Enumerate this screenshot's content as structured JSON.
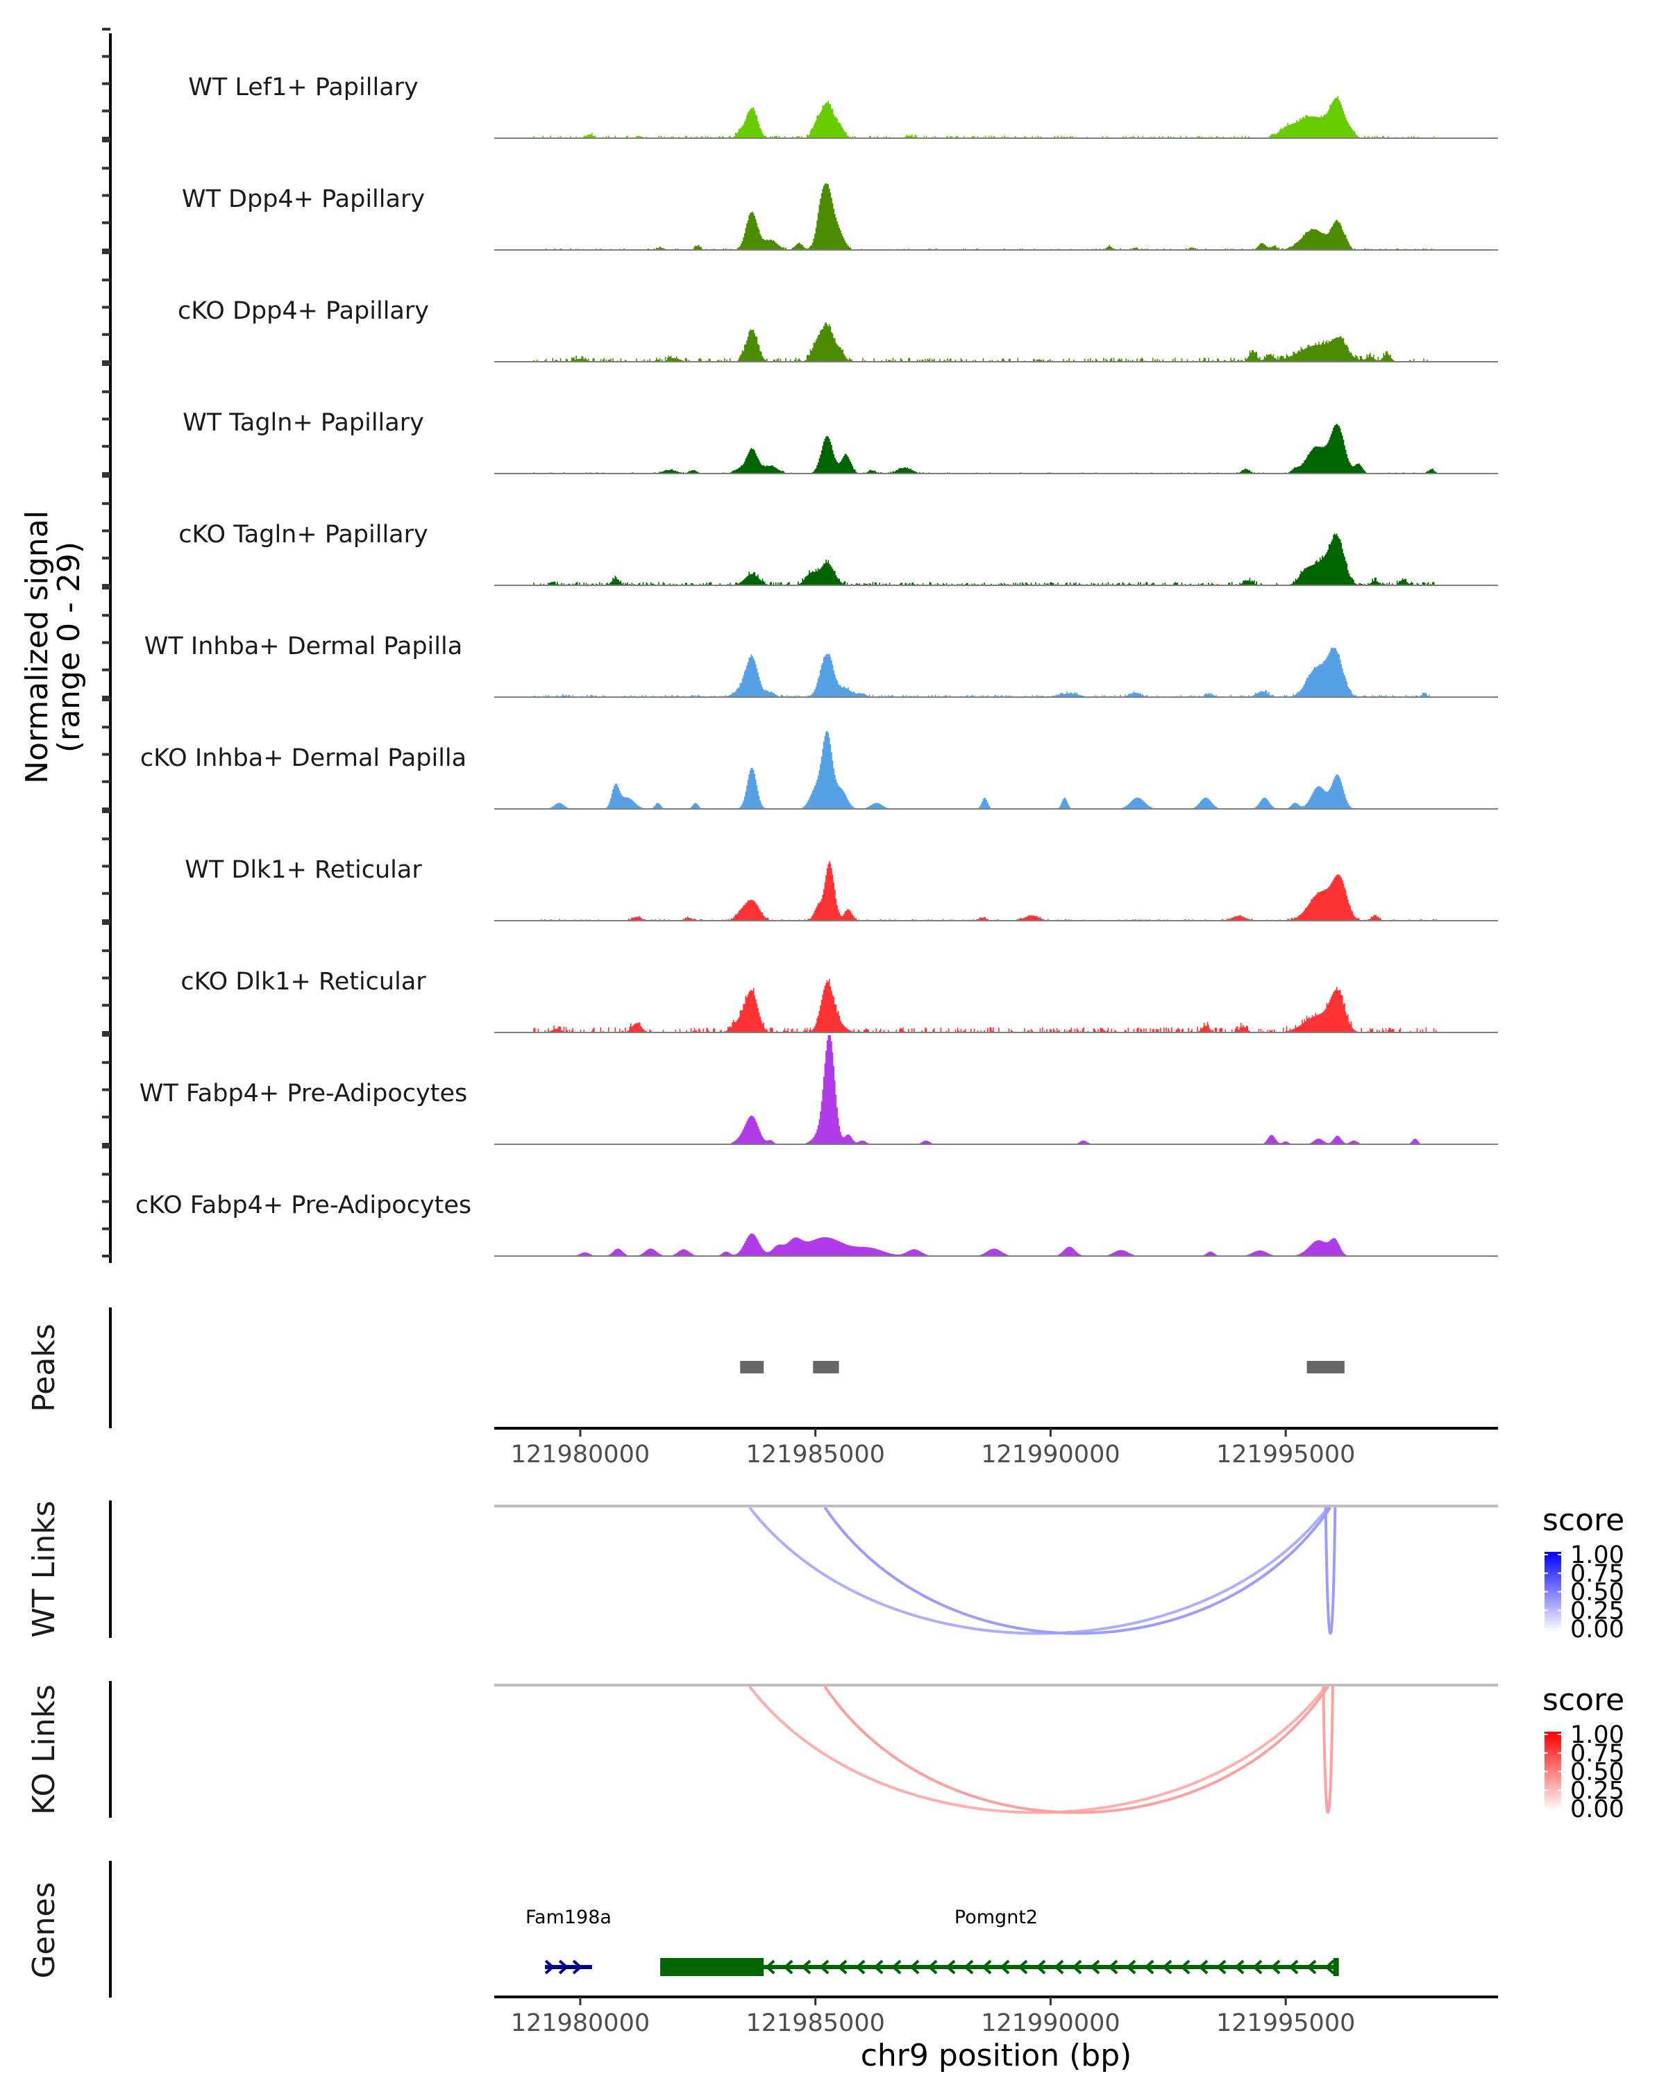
{
  "chart_data": {
    "type": "area",
    "title": "",
    "xlabel": "chr9 position (bp)",
    "ylabel": "Normalized signal\n(range 0 - 29)",
    "ylabel_lines": [
      "Normalized signal",
      "(range 0 - 29)"
    ],
    "chromosome": "chr9",
    "xlim": [
      121978171,
      121999514
    ],
    "ylim": [
      0,
      29
    ],
    "x_ticks": [
      121980000,
      121985000,
      121990000,
      121995000
    ],
    "x_tick_labels": [
      "121980000",
      "121985000",
      "121990000",
      "121995000"
    ],
    "grid": false,
    "coverage_tracks": [
      {
        "name": "WT Lef1+ Papillary",
        "color": "#66cc00",
        "noise": 0.35,
        "peaks": [
          [
            121983650,
            8.0,
            120
          ],
          [
            121985250,
            9.5,
            150
          ],
          [
            121985000,
            2.0,
            80
          ],
          [
            121985550,
            2.0,
            80
          ],
          [
            121983400,
            1.6,
            80
          ],
          [
            121980200,
            1.0,
            80
          ],
          [
            121995550,
            5.8,
            350
          ],
          [
            121996100,
            9.0,
            150
          ],
          [
            121995000,
            1.4,
            150
          ],
          [
            121996400,
            1.2,
            80
          ],
          [
            121987000,
            0.7,
            80
          ]
        ]
      },
      {
        "name": "WT Dpp4+ Papillary",
        "color": "#4c8c00",
        "noise": 0.2,
        "peaks": [
          [
            121983650,
            10.0,
            120
          ],
          [
            121985250,
            17.0,
            140
          ],
          [
            121984050,
            2.5,
            150
          ],
          [
            121984650,
            1.8,
            80
          ],
          [
            121985100,
            3.5,
            80
          ],
          [
            121985550,
            2.8,
            100
          ],
          [
            121982500,
            1.1,
            60
          ],
          [
            121981700,
            0.7,
            60
          ],
          [
            121991250,
            1.0,
            60
          ],
          [
            121994500,
            1.8,
            80
          ],
          [
            121995600,
            5.5,
            250
          ],
          [
            121996100,
            7.0,
            120
          ],
          [
            121994750,
            1.0,
            60
          ],
          [
            121996300,
            1.2,
            60
          ],
          [
            121993000,
            0.6,
            60
          ],
          [
            121991800,
            0.6,
            60
          ]
        ]
      },
      {
        "name": "cKO Dpp4+ Papillary",
        "color": "#4c8c00",
        "noise": 0.55,
        "peaks": [
          [
            121983650,
            8.5,
            120
          ],
          [
            121985250,
            9.5,
            150
          ],
          [
            121985000,
            3.0,
            100
          ],
          [
            121985550,
            2.0,
            80
          ],
          [
            121995700,
            4.5,
            400
          ],
          [
            121996150,
            4.0,
            150
          ],
          [
            121994300,
            2.7,
            80
          ],
          [
            121994650,
            1.8,
            80
          ],
          [
            121997150,
            2.0,
            80
          ],
          [
            121996800,
            1.3,
            80
          ],
          [
            121982000,
            1.0,
            120
          ],
          [
            121980000,
            0.8,
            120
          ]
        ]
      },
      {
        "name": "WT Tagln+ Papillary",
        "color": "#006400",
        "noise": 0.15,
        "peaks": [
          [
            121983650,
            6.5,
            120
          ],
          [
            121985250,
            10.0,
            120
          ],
          [
            121985650,
            5.0,
            100
          ],
          [
            121984050,
            2.0,
            150
          ],
          [
            121983350,
            1.0,
            100
          ],
          [
            121986900,
            1.5,
            150
          ],
          [
            121981900,
            0.9,
            150
          ],
          [
            121982400,
            0.9,
            80
          ],
          [
            121986200,
            0.8,
            80
          ],
          [
            121995650,
            7.0,
            200
          ],
          [
            121996100,
            12.5,
            150
          ],
          [
            121996550,
            2.5,
            80
          ],
          [
            121994150,
            1.2,
            80
          ],
          [
            121995200,
            1.0,
            80
          ],
          [
            121998100,
            1.2,
            60
          ]
        ]
      },
      {
        "name": "cKO Tagln+ Papillary",
        "color": "#006400",
        "noise": 0.45,
        "peaks": [
          [
            121983650,
            3.0,
            150
          ],
          [
            121985250,
            6.0,
            150
          ],
          [
            121984900,
            3.0,
            120
          ],
          [
            121980750,
            1.8,
            80
          ],
          [
            121979400,
            0.9,
            60
          ],
          [
            121995750,
            6.0,
            250
          ],
          [
            121996100,
            11.0,
            150
          ],
          [
            121995400,
            2.0,
            120
          ],
          [
            121994200,
            1.3,
            100
          ],
          [
            121996900,
            1.2,
            80
          ],
          [
            121997500,
            1.5,
            80
          ]
        ]
      },
      {
        "name": "WT Inhba+ Dermal Papilla",
        "color": "#56a0e6",
        "noise": 0.3,
        "peaks": [
          [
            121983650,
            10.5,
            130
          ],
          [
            121985250,
            11.5,
            140
          ],
          [
            121983400,
            1.5,
            150
          ],
          [
            121985650,
            2.2,
            120
          ],
          [
            121984050,
            1.2,
            100
          ],
          [
            121986000,
            1.0,
            80
          ],
          [
            121995650,
            7.5,
            200
          ],
          [
            121996050,
            12.0,
            160
          ],
          [
            121994500,
            1.5,
            120
          ],
          [
            121991800,
            1.2,
            120
          ],
          [
            121990400,
            1.0,
            200
          ],
          [
            121993400,
            0.8,
            80
          ],
          [
            121997950,
            0.8,
            60
          ],
          [
            121979650,
            0.4,
            80
          ]
        ]
      },
      {
        "name": "cKO Inhba+ Dermal Papilla",
        "color": "#56a0e6",
        "noise": 0.0,
        "peaks": [
          [
            121983650,
            11.0,
            100
          ],
          [
            121985250,
            20.0,
            110
          ],
          [
            121985000,
            5.0,
            120
          ],
          [
            121985550,
            5.0,
            120
          ],
          [
            121980750,
            6.0,
            80
          ],
          [
            121981000,
            3.0,
            150
          ],
          [
            121979550,
            1.6,
            100
          ],
          [
            121981650,
            1.6,
            60
          ],
          [
            121982450,
            1.6,
            60
          ],
          [
            121986300,
            1.6,
            120
          ],
          [
            121988600,
            3.0,
            60
          ],
          [
            121990300,
            3.0,
            60
          ],
          [
            121991850,
            3.0,
            150
          ],
          [
            121993300,
            3.0,
            120
          ],
          [
            121994550,
            3.0,
            100
          ],
          [
            121995200,
            1.6,
            80
          ],
          [
            121995700,
            6.0,
            150
          ],
          [
            121996100,
            9.0,
            120
          ]
        ]
      },
      {
        "name": "WT Dlk1+ Reticular",
        "color": "#ff3333",
        "noise": 0.2,
        "peaks": [
          [
            121985300,
            15.5,
            100
          ],
          [
            121983650,
            5.5,
            150
          ],
          [
            121985050,
            3.5,
            80
          ],
          [
            121985700,
            3.0,
            80
          ],
          [
            121983400,
            1.5,
            100
          ],
          [
            121981200,
            1.0,
            100
          ],
          [
            121988550,
            0.8,
            80
          ],
          [
            121989600,
            1.4,
            150
          ],
          [
            121995750,
            7.5,
            250
          ],
          [
            121996150,
            10.0,
            150
          ],
          [
            121994000,
            1.2,
            150
          ],
          [
            121996900,
            1.2,
            80
          ],
          [
            121982300,
            0.8,
            80
          ]
        ]
      },
      {
        "name": "cKO Dlk1+ Reticular",
        "color": "#ff3333",
        "noise": 0.7,
        "peaks": [
          [
            121983650,
            10.5,
            130
          ],
          [
            121985250,
            13.0,
            130
          ],
          [
            121985500,
            2.0,
            150
          ],
          [
            121983400,
            3.0,
            150
          ],
          [
            121981200,
            2.5,
            100
          ],
          [
            121979500,
            1.0,
            100
          ],
          [
            121995700,
            4.5,
            300
          ],
          [
            121996100,
            9.5,
            150
          ],
          [
            121993300,
            1.8,
            80
          ],
          [
            121994100,
            1.5,
            80
          ]
        ]
      },
      {
        "name": "WT Fabp4+ Pre-Adipocytes",
        "color": "#b03ce8",
        "noise": 0.0,
        "peaks": [
          [
            121985300,
            29.0,
            110
          ],
          [
            121983650,
            7.5,
            140
          ],
          [
            121983400,
            1.0,
            120
          ],
          [
            121984050,
            1.0,
            60
          ],
          [
            121985100,
            2.5,
            150
          ],
          [
            121985700,
            2.6,
            80
          ],
          [
            121986000,
            1.0,
            80
          ],
          [
            121987350,
            1.0,
            80
          ],
          [
            121990700,
            1.0,
            80
          ],
          [
            121994700,
            2.5,
            80
          ],
          [
            121995000,
            0.8,
            60
          ],
          [
            121995700,
            1.5,
            100
          ],
          [
            121996100,
            2.3,
            80
          ],
          [
            121996450,
            1.0,
            80
          ],
          [
            121997750,
            1.5,
            60
          ]
        ]
      },
      {
        "name": "cKO Fabp4+ Pre-Adipocytes",
        "color": "#b03ce8",
        "noise": 0.0,
        "peaks": [
          [
            121983650,
            6.0,
            150
          ],
          [
            121985200,
            5.0,
            400
          ],
          [
            121984200,
            2.5,
            120
          ],
          [
            121984550,
            3.5,
            150
          ],
          [
            121986150,
            2.0,
            300
          ],
          [
            121987100,
            1.8,
            150
          ],
          [
            121980100,
            1.0,
            100
          ],
          [
            121980800,
            2.0,
            100
          ],
          [
            121981500,
            2.0,
            120
          ],
          [
            121982200,
            1.8,
            120
          ],
          [
            121983100,
            1.2,
            80
          ],
          [
            121988800,
            2.0,
            150
          ],
          [
            121990400,
            2.5,
            120
          ],
          [
            121991500,
            1.6,
            150
          ],
          [
            121993400,
            1.2,
            80
          ],
          [
            121994450,
            1.5,
            150
          ],
          [
            121995700,
            4.2,
            200
          ],
          [
            121996050,
            3.8,
            100
          ]
        ]
      }
    ],
    "peaks_track": {
      "label": "Peaks",
      "color": "#666666",
      "regions": [
        [
          121983400,
          121983900
        ],
        [
          121984950,
          121985500
        ],
        [
          121995450,
          121996250
        ]
      ]
    },
    "link_tracks": [
      {
        "label": "WT Links",
        "links": [
          {
            "start": 121983600,
            "end": 121995900,
            "score": 0.35
          },
          {
            "start": 121985200,
            "end": 121995950,
            "score": 0.55
          },
          {
            "start": 121995850,
            "end": 121996050,
            "score": 0.55
          }
        ],
        "legend": {
          "title": "score",
          "low_color": "#ffffff",
          "high_color": "#0000ff",
          "ticks": [
            "1.00",
            "0.75",
            "0.50",
            "0.25",
            "0.00"
          ],
          "range": [
            0,
            1
          ]
        }
      },
      {
        "label": "KO Links",
        "links": [
          {
            "start": 121983600,
            "end": 121995850,
            "score": 0.35
          },
          {
            "start": 121985200,
            "end": 121995900,
            "score": 0.5
          },
          {
            "start": 121995800,
            "end": 121996000,
            "score": 0.5
          }
        ],
        "legend": {
          "title": "score",
          "low_color": "#ffffff",
          "high_color": "#ff0000",
          "ticks": [
            "1.00",
            "0.75",
            "0.50",
            "0.25",
            "0.00"
          ],
          "range": [
            0,
            1
          ]
        }
      }
    ],
    "genes_track": {
      "label": "Genes",
      "genes": [
        {
          "name": "Fam198a",
          "start": 121979250,
          "end": 121980250,
          "strand": "+",
          "color": "#00008b",
          "thick": []
        },
        {
          "name": "Pomgnt2",
          "start": 121981700,
          "end": 121996100,
          "strand": "-",
          "color": "#006400",
          "thick": [
            [
              121981700,
              121983900
            ]
          ]
        }
      ]
    }
  }
}
